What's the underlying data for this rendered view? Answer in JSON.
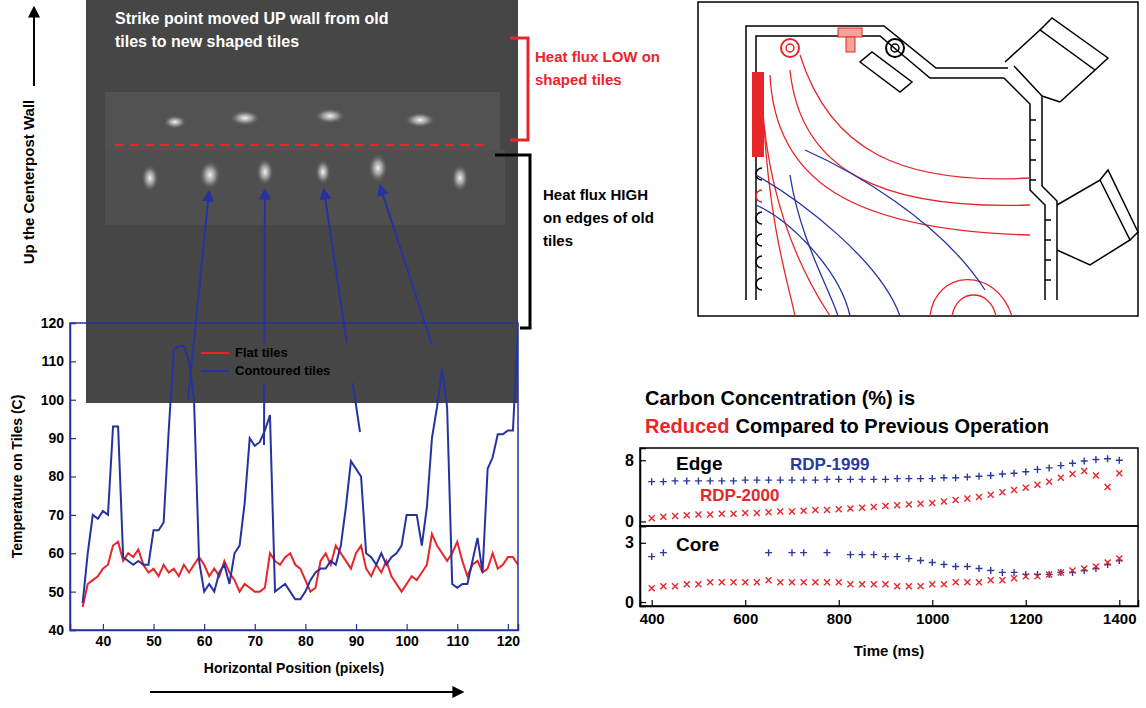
{
  "chart_data": [
    {
      "type": "line",
      "xlabel": "Horizontal Position (pixels)",
      "ylabel": "Temperature on Tiles (C)",
      "xlim": [
        33.5,
        122
      ],
      "xticks": [
        40,
        50,
        60,
        70,
        80,
        90,
        100,
        110,
        120
      ],
      "ylim": [
        40,
        120
      ],
      "yticks": [
        40,
        50,
        60,
        70,
        80,
        90,
        100,
        110,
        120
      ],
      "legend": "top",
      "x": [
        36,
        37,
        38,
        39,
        40,
        41,
        42,
        43,
        44,
        45,
        46,
        47,
        48,
        49,
        50,
        51,
        52,
        53,
        54,
        55,
        56,
        57,
        58,
        59,
        60,
        61,
        62,
        63,
        64,
        65,
        66,
        67,
        68,
        69,
        70,
        71,
        72,
        73,
        74,
        75,
        76,
        77,
        78,
        79,
        80,
        81,
        82,
        83,
        84,
        85,
        86,
        87,
        88,
        89,
        90,
        91,
        92,
        93,
        94,
        95,
        96,
        97,
        98,
        99,
        100,
        101,
        102,
        103,
        104,
        105,
        106,
        107,
        108,
        109,
        110,
        111,
        112,
        113,
        114,
        115,
        116,
        117,
        118,
        119,
        120,
        121,
        122
      ],
      "series": [
        {
          "name": "Flat tiles",
          "color": "#e8262a",
          "values": [
            46,
            52,
            53,
            54,
            56,
            57,
            62,
            63,
            58,
            60,
            59,
            61,
            57,
            55,
            56,
            54,
            57,
            55,
            56,
            54,
            57,
            55,
            57,
            59,
            57,
            54,
            56,
            54,
            58,
            55,
            53,
            50,
            52,
            51,
            50,
            50,
            51,
            60,
            58,
            57,
            59,
            60,
            57,
            56,
            53,
            50,
            51,
            58,
            60,
            57,
            62,
            60,
            58,
            56,
            60,
            62,
            56,
            54,
            57,
            55,
            58,
            54,
            52,
            50,
            52,
            54,
            53,
            55,
            57,
            65,
            62,
            60,
            58,
            60,
            63,
            58,
            54,
            57,
            58,
            55,
            56,
            60,
            56,
            57,
            59,
            59,
            57
          ]
        },
        {
          "name": "Contoured tiles",
          "color": "#2533a0",
          "values": [
            47,
            60,
            70,
            69,
            71,
            70,
            93,
            93,
            59,
            58,
            57,
            58,
            57,
            57,
            66,
            66,
            68,
            92,
            113,
            114,
            114,
            110,
            100,
            58,
            50,
            52,
            50,
            55,
            57,
            52,
            60,
            62,
            73,
            90,
            88,
            89,
            92,
            96,
            50,
            51,
            52,
            50,
            48,
            48,
            50,
            53,
            55,
            56,
            56,
            58,
            57,
            62,
            72,
            84,
            82,
            80,
            60,
            59,
            57,
            60,
            57,
            59,
            60,
            62,
            70,
            70,
            70,
            62,
            72,
            90,
            98,
            108,
            98,
            52,
            51,
            52,
            52,
            58,
            64,
            55,
            82,
            85,
            91,
            91,
            92,
            92,
            118
          ]
        }
      ],
      "annotations": [
        {
          "text": "Strike point moved UP wall from old tiles to new shaped tiles",
          "color": "#ffffff"
        },
        {
          "text": "Up the Centerpost Wall",
          "color": "#000000"
        },
        {
          "text": "Heat flux LOW on shaped tiles",
          "color": "#e8262a"
        },
        {
          "text": "Heat flux HIGH on edges of old tiles",
          "color": "#000000"
        }
      ]
    },
    {
      "type": "scatter",
      "title": [
        {
          "text": "Carbon Concentration (%) is",
          "color": "#000000"
        },
        {
          "text": "Reduced",
          "color": "#e8262a"
        },
        {
          "text": "Compared to Previous Operation",
          "color": "#000000"
        }
      ],
      "xlabel": "Time (ms)",
      "xlim": [
        375,
        1440
      ],
      "xticks": [
        400,
        600,
        800,
        1000,
        1200,
        1400
      ],
      "legend": "top-left",
      "x": [
        400,
        425,
        450,
        475,
        500,
        525,
        550,
        575,
        600,
        625,
        650,
        675,
        700,
        725,
        750,
        775,
        800,
        825,
        850,
        875,
        900,
        925,
        950,
        975,
        1000,
        1025,
        1050,
        1075,
        1100,
        1125,
        1150,
        1175,
        1200,
        1225,
        1250,
        1275,
        1300,
        1325,
        1350,
        1375,
        1400
      ],
      "panels": [
        {
          "title": "Edge",
          "ylim": [
            -0.6,
            9.6
          ],
          "yticks": [
            0,
            8
          ],
          "series": [
            {
              "name": "RDP-1999",
              "color": "#2a3a9e",
              "marker": "plus",
              "values": [
                5.2,
                5.2,
                5.3,
                5.3,
                5.3,
                5.3,
                5.3,
                5.3,
                5.4,
                5.4,
                5.4,
                5.4,
                5.4,
                5.4,
                5.4,
                5.5,
                5.5,
                5.5,
                5.5,
                5.5,
                5.5,
                5.6,
                5.6,
                5.6,
                5.6,
                5.7,
                5.7,
                5.8,
                5.9,
                6.0,
                6.2,
                6.3,
                6.5,
                6.8,
                7.0,
                7.3,
                7.6,
                7.9,
                8.1,
                8.2,
                8.0
              ]
            },
            {
              "name": "RDP-2000",
              "color": "#e8262a",
              "marker": "x",
              "values": [
                0.4,
                0.6,
                0.7,
                0.8,
                0.9,
                0.9,
                1.0,
                1.0,
                1.1,
                1.1,
                1.2,
                1.3,
                1.3,
                1.4,
                1.5,
                1.5,
                1.6,
                1.7,
                1.8,
                1.9,
                2.0,
                2.1,
                2.2,
                2.3,
                2.4,
                2.6,
                2.8,
                3.0,
                3.2,
                3.5,
                3.8,
                4.1,
                4.4,
                4.8,
                5.2,
                5.7,
                6.2,
                6.6,
                6.0,
                4.5,
                6.3
              ]
            }
          ]
        },
        {
          "title": "Core",
          "ylim": [
            -0.2,
            3.85
          ],
          "yticks": [
            0,
            3
          ],
          "series": [
            {
              "color": "#2a3a9e",
              "marker": "plus",
              "values": [
                2.3,
                2.5,
                null,
                null,
                null,
                null,
                null,
                null,
                null,
                null,
                2.5,
                null,
                2.5,
                2.5,
                null,
                2.5,
                null,
                2.4,
                2.4,
                2.4,
                2.3,
                2.3,
                2.2,
                2.1,
                2.0,
                1.9,
                1.8,
                1.8,
                1.7,
                1.6,
                1.5,
                1.5,
                1.4,
                1.4,
                1.4,
                1.5,
                1.5,
                1.6,
                1.7,
                1.9,
                2.1
              ]
            },
            {
              "color": "#e8262a",
              "marker": "x",
              "values": [
                0.7,
                0.8,
                0.8,
                0.9,
                0.9,
                1.0,
                1.0,
                1.0,
                1.0,
                1.0,
                1.1,
                1.0,
                1.0,
                1.0,
                1.0,
                1.0,
                1.0,
                0.9,
                0.9,
                0.9,
                0.9,
                0.8,
                0.8,
                0.8,
                0.9,
                0.9,
                1.0,
                1.0,
                1.0,
                1.1,
                1.1,
                1.2,
                1.3,
                1.3,
                1.4,
                1.5,
                1.6,
                1.7,
                1.8,
                2.0,
                2.2
              ]
            }
          ]
        }
      ]
    }
  ]
}
